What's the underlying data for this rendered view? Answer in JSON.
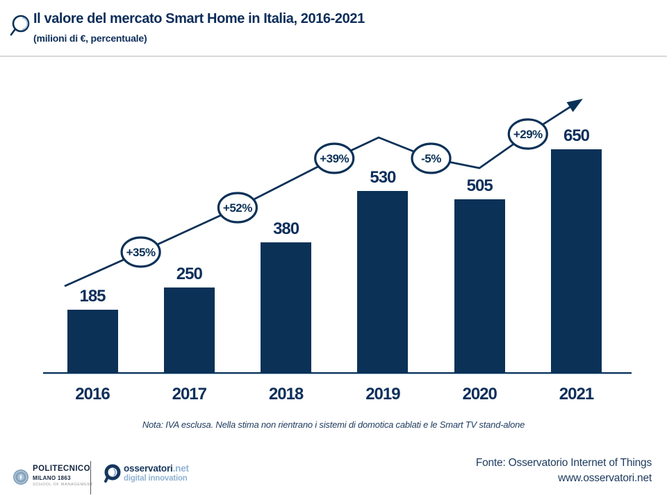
{
  "header": {
    "title": "Il valore del mercato Smart Home in Italia, 2016-2021",
    "subtitle": "(milioni di €, percentuale)"
  },
  "chart_data": {
    "type": "bar",
    "title": "Il valore del mercato Smart Home in Italia, 2016-2021",
    "unit_label": "milioni di €, percentuale",
    "categories": [
      "2016",
      "2017",
      "2018",
      "2019",
      "2020",
      "2021"
    ],
    "values": [
      185,
      250,
      380,
      530,
      505,
      650
    ],
    "growth_labels": [
      "+35%",
      "+52%",
      "+39%",
      "-5%",
      "+29%"
    ],
    "bar_color": "#0b3157",
    "legend": "none",
    "grid": false,
    "trend_line": "rising arrow line above bars with growth badges between years"
  },
  "note": "Nota: IVA esclusa. Nella stima non rientrano i sistemi di domotica cablati e le Smart TV stand-alone",
  "footer": {
    "polimi_logo": {
      "line1": "POLITECNICO",
      "line2": "MILANO 1863",
      "line3": "SCHOOL OF MANAGEMENT"
    },
    "osservatori_logo": {
      "brand": "osservatori",
      "net": ".net",
      "tagline": "digital innovation"
    },
    "source_line1": "Fonte: Osservatorio Internet of Things",
    "source_line2": "www.osservatori.net"
  },
  "colors": {
    "navy": "#0b3157",
    "light_blue": "#8fb3d1",
    "divider_gray": "#d9d9d9"
  }
}
